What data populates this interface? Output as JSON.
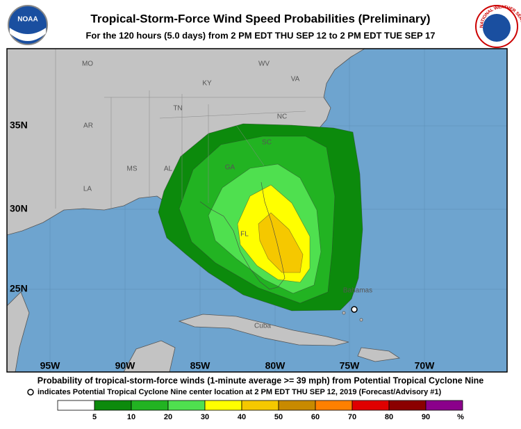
{
  "header": {
    "title": "Tropical-Storm-Force Wind Speed Probabilities (Preliminary)",
    "subtitle": "For the 120 hours (5.0 days) from 2 PM EDT THU SEP 12 to 2 PM EDT TUE SEP 17",
    "noaa_logo": "NOAA",
    "nws_logo": "NATIONAL WEATHER SERVICE"
  },
  "map": {
    "state_labels": [
      "MO",
      "WV",
      "KY",
      "VA",
      "TN",
      "NC",
      "AR",
      "SC",
      "MS",
      "AL",
      "GA",
      "LA",
      "FL"
    ],
    "place_labels": [
      "Cuba",
      "Bahamas"
    ],
    "lat_labels": [
      "35N",
      "30N",
      "25N"
    ],
    "lon_labels": [
      "95W",
      "90W",
      "85W",
      "80W",
      "75W",
      "70W"
    ]
  },
  "footer": {
    "caption": "Probability of tropical-storm-force winds (1-minute average >= 39 mph) from Potential Tropical Cyclone Nine",
    "note": "indicates Potential Tropical Cyclone Nine center location at 2 PM EDT THU SEP 12, 2019 (Forecast/Advisory #1)"
  },
  "legend": {
    "thresholds": [
      5,
      10,
      20,
      30,
      40,
      50,
      60,
      70,
      80,
      90
    ],
    "unit": "%",
    "colors": [
      "#ffffff",
      "#0c8a0c",
      "#22b322",
      "#4fe04f",
      "#ffff00",
      "#f5c800",
      "#c88a00",
      "#ff8000",
      "#e00000",
      "#8b0000",
      "#8b008b"
    ]
  }
}
